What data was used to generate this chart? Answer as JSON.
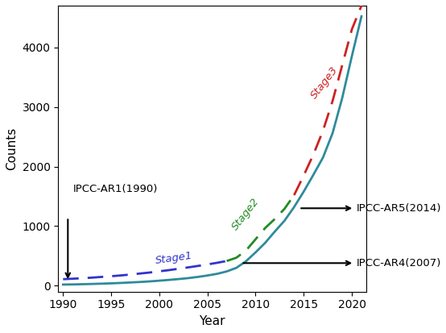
{
  "title": "",
  "xlabel": "Year",
  "ylabel": "Counts",
  "xlim": [
    1989.5,
    2021.5
  ],
  "ylim": [
    -100,
    4700
  ],
  "background_color": "#ffffff",
  "solid_line_color": "#2E8B9A",
  "dashed_blue_color": "#3333CC",
  "dashed_green_color": "#228B22",
  "dashed_red_color": "#CC2222",
  "solid_x": [
    1990,
    1991,
    1992,
    1993,
    1994,
    1995,
    1996,
    1997,
    1998,
    1999,
    2000,
    2001,
    2002,
    2003,
    2004,
    2005,
    2006,
    2007,
    2008,
    2009,
    2010,
    2011,
    2012,
    2013,
    2014,
    2015,
    2016,
    2017,
    2018,
    2019,
    2020,
    2021
  ],
  "solid_y": [
    20,
    22,
    26,
    30,
    35,
    40,
    47,
    55,
    63,
    73,
    85,
    98,
    112,
    128,
    148,
    172,
    200,
    240,
    300,
    410,
    560,
    720,
    910,
    1090,
    1320,
    1580,
    1860,
    2150,
    2560,
    3150,
    3850,
    4520
  ],
  "dashed_blue_x": [
    1990,
    1991,
    1992,
    1993,
    1994,
    1995,
    1996,
    1997,
    1998,
    1999,
    2000,
    2001,
    2002,
    2003,
    2004,
    2005,
    2006,
    2007
  ],
  "dashed_blue_y": [
    110,
    118,
    126,
    136,
    148,
    160,
    173,
    188,
    205,
    222,
    242,
    262,
    285,
    308,
    332,
    358,
    385,
    415
  ],
  "dashed_green_x": [
    2007,
    2008,
    2009,
    2010,
    2011,
    2012,
    2013,
    2014
  ],
  "dashed_green_y": [
    415,
    470,
    590,
    780,
    970,
    1120,
    1290,
    1520
  ],
  "dashed_red_x": [
    2014,
    2015,
    2016,
    2017,
    2018,
    2019,
    2020,
    2021
  ],
  "dashed_red_y": [
    1520,
    1850,
    2200,
    2600,
    3100,
    3700,
    4300,
    4700
  ],
  "xticks": [
    1990,
    1995,
    2000,
    2005,
    2010,
    2015,
    2020
  ],
  "yticks": [
    0,
    1000,
    2000,
    3000,
    4000
  ]
}
